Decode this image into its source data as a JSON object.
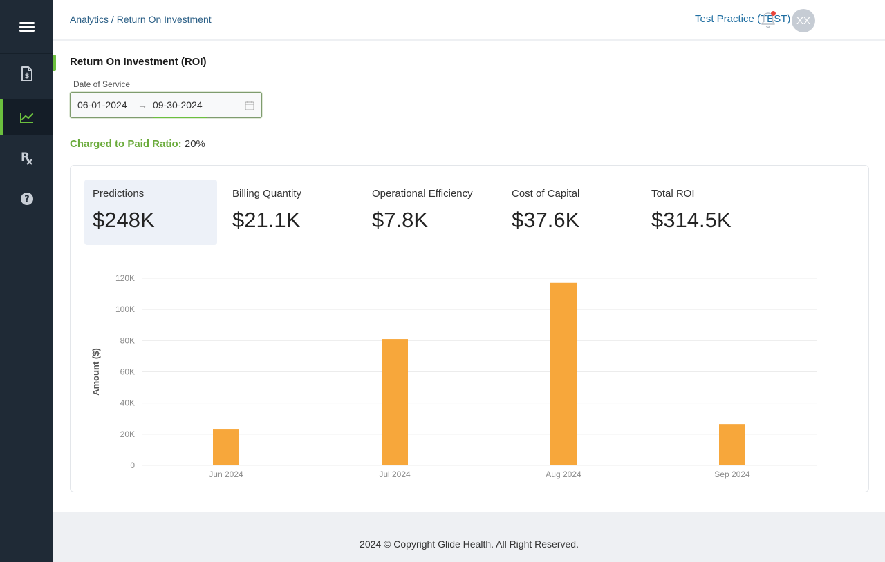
{
  "header": {
    "breadcrumb": "Analytics / Return On Investment",
    "practice": "Test Practice (TEST)",
    "avatar_initials": "XX"
  },
  "sidebar": {
    "items": [
      {
        "icon": "dollar-document-icon",
        "active": false
      },
      {
        "icon": "line-chart-icon",
        "active": true
      },
      {
        "icon": "prescription-icon",
        "active": false
      },
      {
        "icon": "help-icon",
        "active": false
      }
    ]
  },
  "page": {
    "title": "Return On Investment (ROI)",
    "date_label": "Date of Service",
    "date_start": "06-01-2024",
    "date_arrow": "→",
    "date_end": "09-30-2024",
    "ratio_label": "Charged to Paid Ratio:",
    "ratio_value": "20%"
  },
  "kpis": [
    {
      "label": "Predictions",
      "value": "$248K",
      "active": true
    },
    {
      "label": "Billing Quantity",
      "value": "$21.1K",
      "active": false
    },
    {
      "label": "Operational Efficiency",
      "value": "$7.8K",
      "active": false
    },
    {
      "label": "Cost of Capital",
      "value": "$37.6K",
      "active": false
    },
    {
      "label": "Total ROI",
      "value": "$314.5K",
      "active": false
    }
  ],
  "chart_data": {
    "type": "bar",
    "categories": [
      "Jun 2024",
      "Jul 2024",
      "Aug 2024",
      "Sep 2024"
    ],
    "values": [
      23000,
      81000,
      117000,
      26500
    ],
    "ylabel": "Amount ($)",
    "xlabel": "",
    "ylim": [
      0,
      120000
    ],
    "yticks": [
      0,
      20000,
      40000,
      60000,
      80000,
      100000,
      120000
    ],
    "ytick_labels": [
      "0",
      "20K",
      "40K",
      "60K",
      "80K",
      "100K",
      "120K"
    ],
    "grid": true,
    "bar_color": "#f7a73b"
  },
  "footer": {
    "text": "2024 © Copyright Glide Health. All Right Reserved."
  }
}
